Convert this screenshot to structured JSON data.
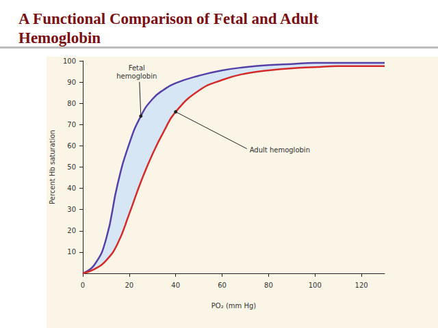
{
  "chart_data": {
    "type": "line",
    "title": "A Functional Comparison of Fetal and Adult Hemoglobin",
    "xlabel": "PO₂ (mm Hg)",
    "ylabel": "Percent Hb saturation",
    "x": [
      0,
      5,
      10,
      15,
      20,
      25,
      30,
      35,
      40,
      50,
      60,
      70,
      80,
      90,
      100,
      110,
      120,
      130
    ],
    "series": [
      {
        "name": "Fetal hemoglobin",
        "color": "#5540a8",
        "values": [
          0,
          4,
          16,
          42,
          61,
          74,
          82,
          86.5,
          89.5,
          93,
          95.5,
          97,
          98,
          98.5,
          99,
          99,
          99,
          99
        ]
      },
      {
        "name": "Adult hemoglobin",
        "color": "#d42a2a",
        "values": [
          0,
          2,
          6,
          14,
          28,
          43,
          56,
          67,
          76,
          86,
          91,
          94,
          95.5,
          96.5,
          97,
          97.5,
          97.5,
          97.5
        ]
      }
    ],
    "xlim": [
      0,
      130
    ],
    "xticks": [
      0,
      20,
      40,
      60,
      80,
      100,
      120
    ],
    "ylim": [
      0,
      100
    ],
    "yticks": [
      10,
      20,
      30,
      40,
      50,
      60,
      70,
      80,
      90,
      100
    ],
    "grid": false,
    "annotations": [
      {
        "text": "Fetal\nhemoglobin",
        "x": 25,
        "y": 74
      },
      {
        "text": "Adult hemoglobin",
        "x": 40,
        "y": 76
      }
    ]
  }
}
